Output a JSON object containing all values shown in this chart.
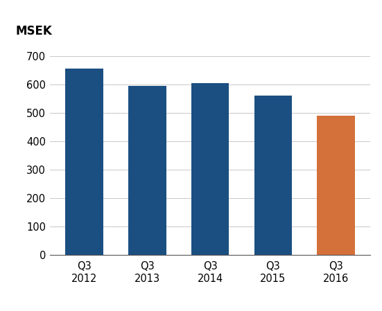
{
  "categories": [
    "Q3\n2012",
    "Q3\n2013",
    "Q3\n2014",
    "Q3\n2015",
    "Q3\n2016"
  ],
  "values": [
    656,
    596,
    604,
    560,
    490
  ],
  "bar_colors": [
    "#1b4f82",
    "#1b4f82",
    "#1b4f82",
    "#1b4f82",
    "#d4703a"
  ],
  "ylabel": "MSEK",
  "ylim": [
    0,
    700
  ],
  "yticks": [
    0,
    100,
    200,
    300,
    400,
    500,
    600,
    700
  ],
  "background_color": "#ffffff",
  "grid_color": "#c8c8c8",
  "bar_width": 0.6,
  "ylabel_fontsize": 12,
  "tick_fontsize": 10.5
}
